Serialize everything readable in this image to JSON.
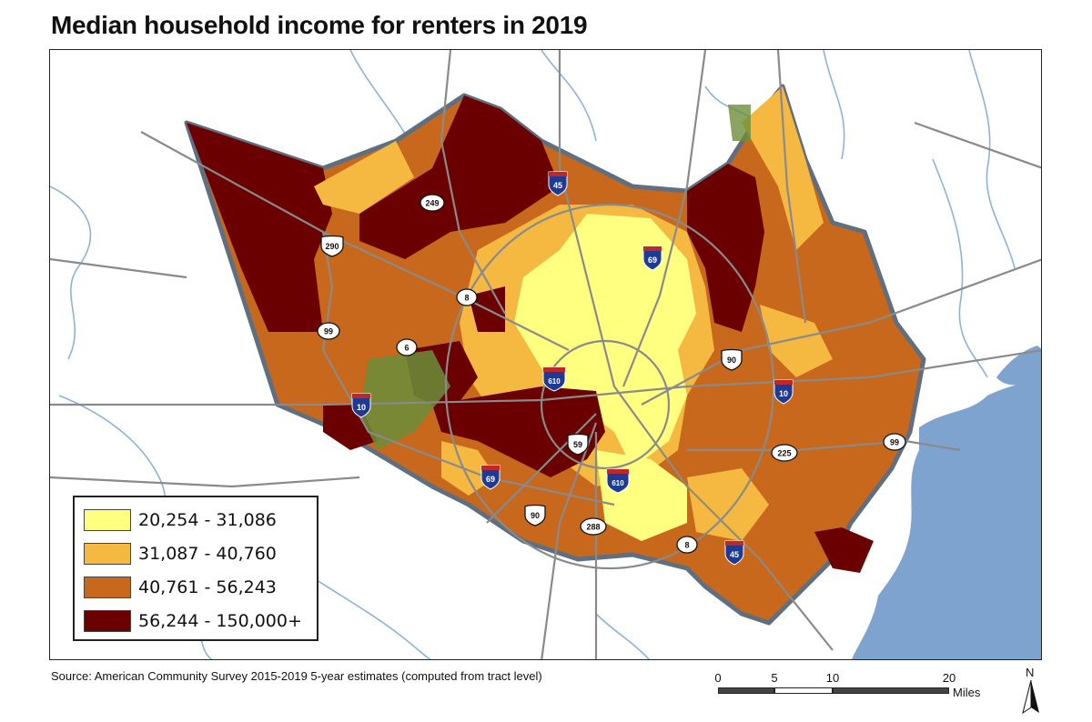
{
  "title": "Median household income for renters in 2019",
  "legend": [
    {
      "label": "20,254 - 31,086",
      "color": "#ffff80"
    },
    {
      "label": "31,087 - 40,760",
      "color": "#f5b942"
    },
    {
      "label": "40,761 - 56,243",
      "color": "#c8681c"
    },
    {
      "label": "56,244 - 150,000+",
      "color": "#6b0000"
    }
  ],
  "highway_shields": [
    {
      "label": "45",
      "type": "interstate"
    },
    {
      "label": "249",
      "type": "state"
    },
    {
      "label": "290",
      "type": "us"
    },
    {
      "label": "69",
      "type": "interstate"
    },
    {
      "label": "8",
      "type": "state"
    },
    {
      "label": "99",
      "type": "state"
    },
    {
      "label": "6",
      "type": "state"
    },
    {
      "label": "610",
      "type": "interstate"
    },
    {
      "label": "90",
      "type": "us"
    },
    {
      "label": "10",
      "type": "interstate"
    },
    {
      "label": "10",
      "type": "interstate"
    },
    {
      "label": "59",
      "type": "us"
    },
    {
      "label": "225",
      "type": "state"
    },
    {
      "label": "99",
      "type": "state"
    },
    {
      "label": "69",
      "type": "interstate"
    },
    {
      "label": "610",
      "type": "interstate"
    },
    {
      "label": "90",
      "type": "us"
    },
    {
      "label": "288",
      "type": "state"
    },
    {
      "label": "8",
      "type": "state"
    },
    {
      "label": "45",
      "type": "interstate"
    }
  ],
  "source": "Source: American Community Survey 2015-2019 5-year estimates (computed from tract level)",
  "scale": {
    "ticks": [
      "0",
      "5",
      "10",
      "20"
    ],
    "units": "Miles"
  },
  "north_label": "N",
  "colors": {
    "water": "#7fa3cf",
    "river": "#8db3d9",
    "road": "#8a8a8a",
    "county_border": "#5f6f80",
    "park": "#6b8e3a"
  }
}
